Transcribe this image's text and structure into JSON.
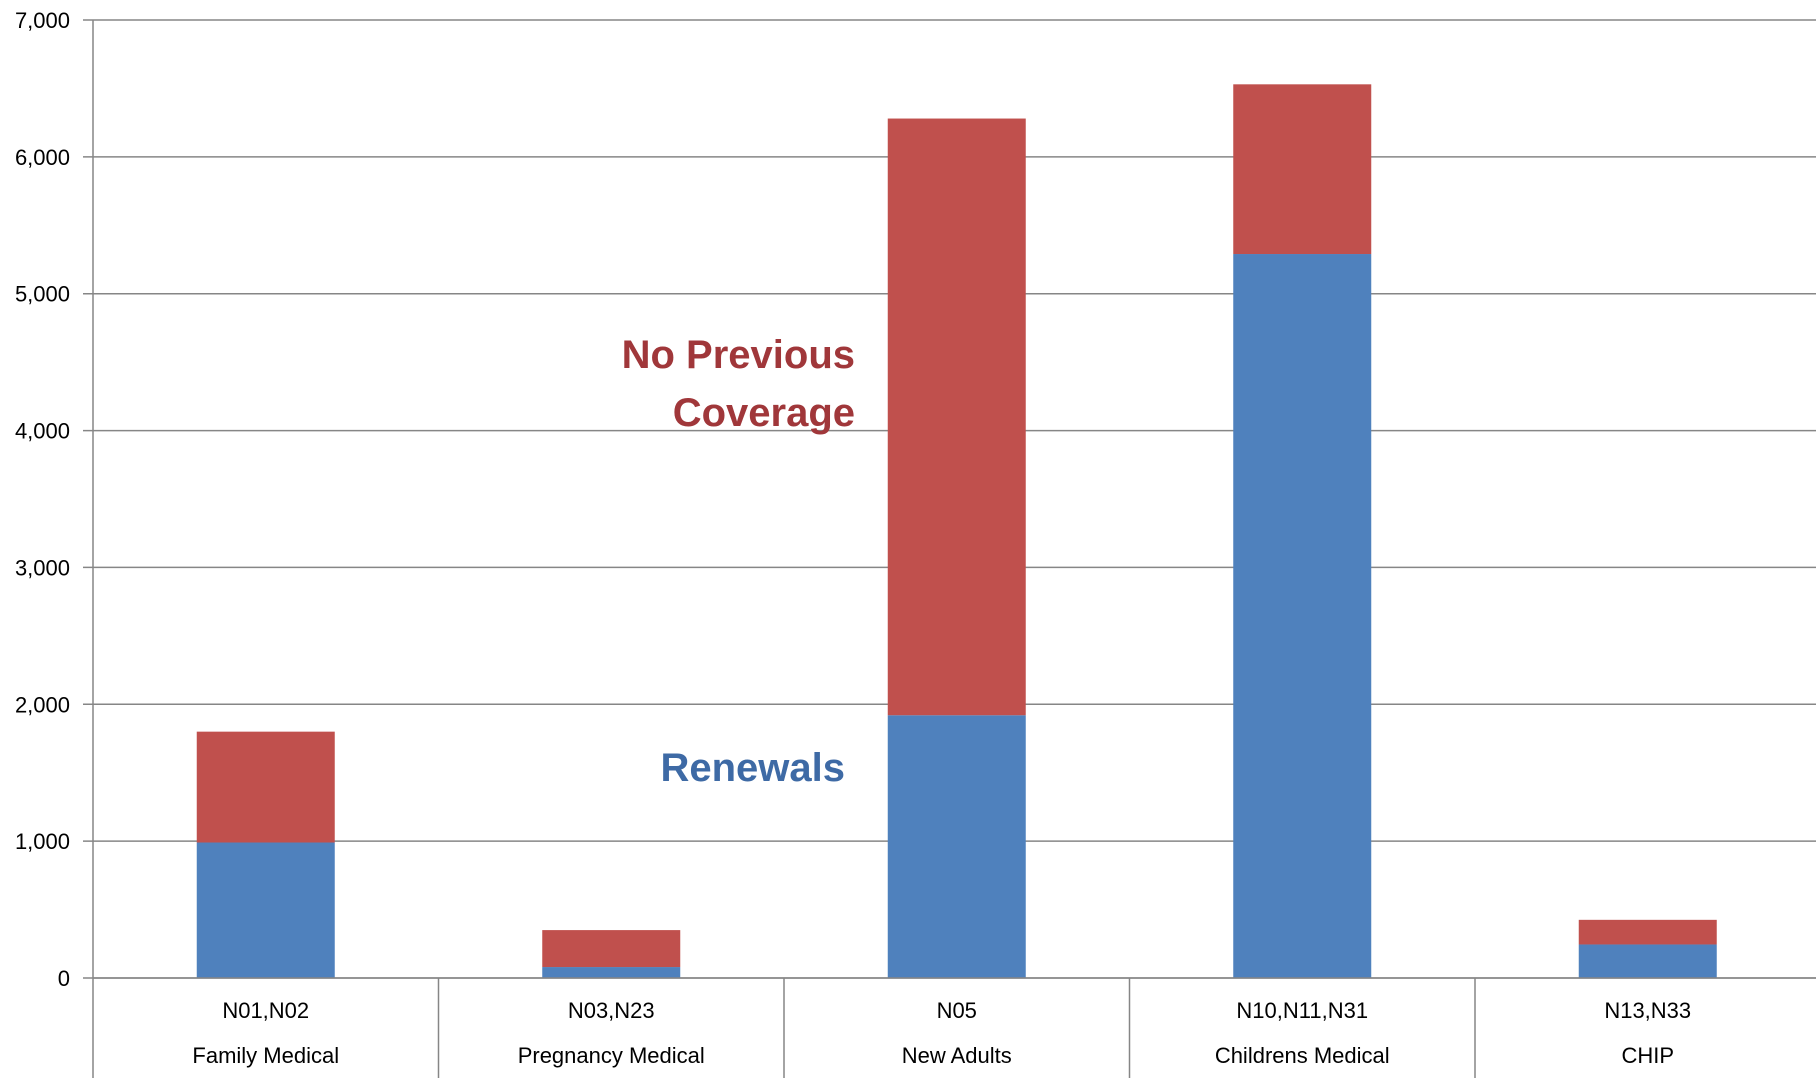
{
  "chart_data": {
    "type": "bar",
    "stacked": true,
    "categories": [
      {
        "code": "N01,N02",
        "name": "Family Medical"
      },
      {
        "code": "N03,N23",
        "name": "Pregnancy Medical"
      },
      {
        "code": "N05",
        "name": "New Adults"
      },
      {
        "code": "N10,N11,N31",
        "name": "Childrens Medical"
      },
      {
        "code": "N13,N33",
        "name": "CHIP"
      }
    ],
    "series": [
      {
        "name": "Renewals",
        "color": "#4f81bd",
        "values": [
          990,
          80,
          1920,
          5290,
          245
        ]
      },
      {
        "name": "No Previous Coverage",
        "color": "#c0504d",
        "values": [
          810,
          270,
          4360,
          1240,
          180
        ]
      }
    ],
    "ylim": [
      0,
      7000
    ],
    "yticks": [
      0,
      1000,
      2000,
      3000,
      4000,
      5000,
      6000,
      7000
    ],
    "ytick_labels": [
      "0",
      "1,000",
      "2,000",
      "3,000",
      "4,000",
      "5,000",
      "6,000",
      "7,000"
    ],
    "grid": true,
    "legend": "none",
    "annotations": [
      {
        "lines": [
          "No Previous",
          "Coverage"
        ],
        "color": "#a0373a"
      },
      {
        "lines": [
          "Renewals"
        ],
        "color": "#3e6aa5"
      }
    ]
  }
}
